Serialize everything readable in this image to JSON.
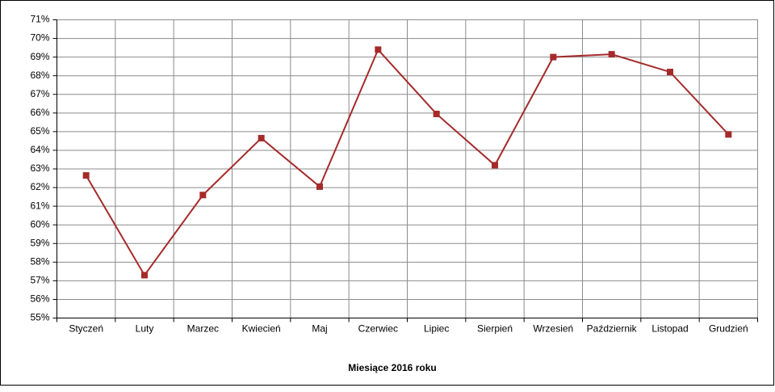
{
  "chart_data": {
    "type": "line",
    "x_label": "Miesiące 2016 roku",
    "categories": [
      "Styczeń",
      "Luty",
      "Marzec",
      "Kwiecień",
      "Maj",
      "Czerwiec",
      "Lipiec",
      "Sierpień",
      "Wrzesień",
      "Październik",
      "Listopad",
      "Grudzień"
    ],
    "values": [
      62.65,
      57.3,
      61.6,
      64.65,
      62.05,
      69.4,
      65.95,
      63.2,
      69.0,
      69.15,
      68.2,
      64.85
    ],
    "color": "#a52a2a",
    "ylim": [
      55,
      71
    ],
    "yticks": [
      {
        "value": 55,
        "label": "55%"
      },
      {
        "value": 56,
        "label": "56%"
      },
      {
        "value": 57,
        "label": "57%"
      },
      {
        "value": 58,
        "label": "58%"
      },
      {
        "value": 59,
        "label": "59%"
      },
      {
        "value": 60,
        "label": "60%"
      },
      {
        "value": 61,
        "label": "61%"
      },
      {
        "value": 62,
        "label": "62%"
      },
      {
        "value": 63,
        "label": "63%"
      },
      {
        "value": 64,
        "label": "64%"
      },
      {
        "value": 65,
        "label": "65%"
      },
      {
        "value": 66,
        "label": "66%"
      },
      {
        "value": 67,
        "label": "67%"
      },
      {
        "value": 68,
        "label": "68%"
      },
      {
        "value": 69,
        "label": "69%"
      },
      {
        "value": 70,
        "label": "70%"
      },
      {
        "value": 71,
        "label": "71%"
      }
    ],
    "grid": true
  }
}
